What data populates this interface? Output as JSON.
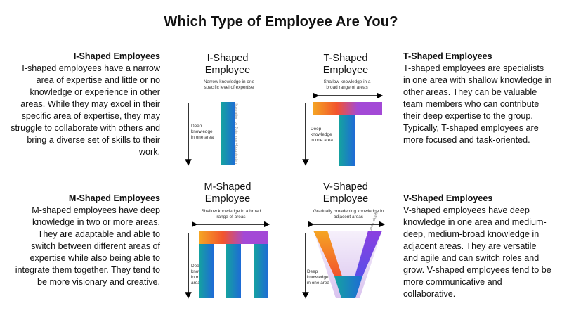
{
  "title": "Which Type of Employee Are You?",
  "i_shaped": {
    "heading": "I-Shaped Employees",
    "text": "I-shaped employees have a narrow area of expertise and little or no knowledge or experience in other areas. While they may excel in their specific area of expertise, they may struggle to collaborate with others and bring a diverse set of skills to their work.",
    "diagram_title_1": "I-Shaped",
    "diagram_title_2": "Employee",
    "top_label": "Narrow knowledge in one specific level of expertise",
    "side_label": "Deep knowledge in one area",
    "credit": "Illustration by Julia van Hoogstraten"
  },
  "t_shaped": {
    "heading": "T-Shaped Employees",
    "text": "T-shaped employees are specialists in one area with shallow knowledge in other areas. They can be valuable team members who can contribute their deep expertise to the group. Typically, T-shaped employees are more focused and task-oriented.",
    "diagram_title_1": "T-Shaped",
    "diagram_title_2": "Employee",
    "top_label": "Shallow knowledge in a broad range of areas",
    "side_label": "Deep knowledge in one area"
  },
  "m_shaped": {
    "heading": "M-Shaped Employees",
    "text": "M-shaped employees have deep knowledge in two or more areas. They are adaptable and able to switch between different areas of expertise while also being able to integrate them together. They tend to be more visionary and creative.",
    "diagram_title_1": "M-Shaped",
    "diagram_title_2": "Employee",
    "top_label": "Shallow knowledge in a broad range of areas",
    "side_label": "Deep knowledge in multiple areas"
  },
  "v_shaped": {
    "heading": "V-Shaped Employees",
    "text": "V-shaped employees have deep knowledge in one area and medium-deep, medium-broad knowledge in adjacent areas. They are versatile and agile and can switch roles and grow. V-shaped employees tend to be more communicative and collaborative.",
    "diagram_title_1": "V-Shaped",
    "diagram_title_2": "Employee",
    "top_label": "Gradually broadening knowledge in adjacent areas",
    "side_label": "Deep knowledge in one area",
    "credit": "© Jeroen Oskam"
  },
  "colors": {
    "orange": "#f5a623",
    "red": "#f2542d",
    "purple": "#a349d6",
    "blue": "#1e6bd6",
    "teal": "#15a2a0"
  }
}
